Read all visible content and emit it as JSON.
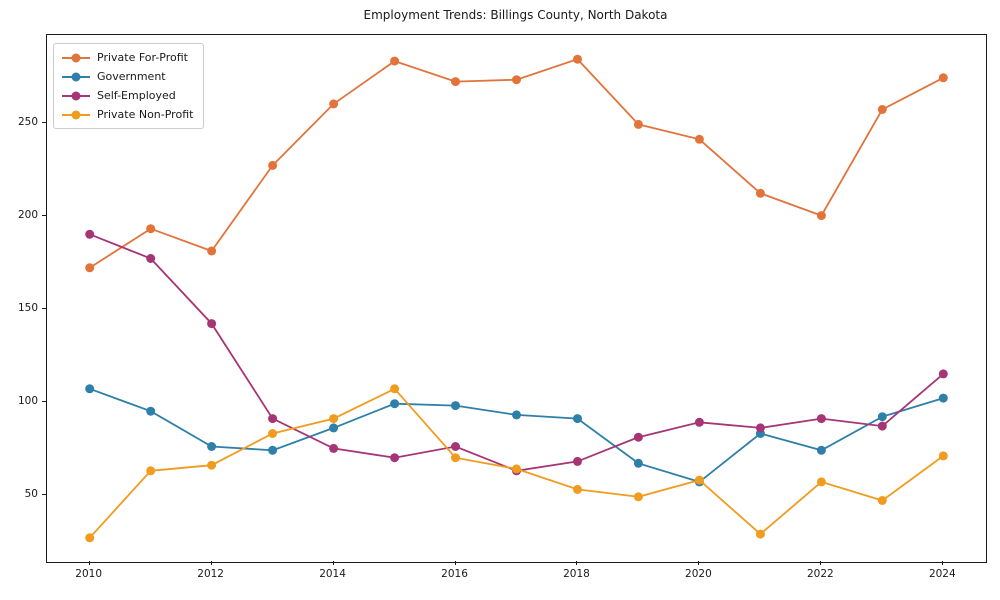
{
  "chart_data": {
    "type": "line",
    "title": "Employment Trends: Billings County, North Dakota",
    "x": [
      2010,
      2011,
      2012,
      2013,
      2014,
      2015,
      2016,
      2017,
      2018,
      2019,
      2020,
      2021,
      2022,
      2023,
      2024
    ],
    "series": [
      {
        "name": "Private For-Profit",
        "color": "#e2743b",
        "values": [
          172,
          193,
          181,
          227,
          260,
          283,
          272,
          273,
          284,
          249,
          241,
          212,
          200,
          257,
          274
        ]
      },
      {
        "name": "Government",
        "color": "#2e7fa9",
        "values": [
          107,
          95,
          76,
          74,
          86,
          99,
          98,
          93,
          91,
          67,
          57,
          83,
          74,
          92,
          102
        ]
      },
      {
        "name": "Self-Employed",
        "color": "#a63576",
        "values": [
          190,
          177,
          142,
          91,
          75,
          70,
          76,
          63,
          68,
          81,
          89,
          86,
          91,
          87,
          115
        ]
      },
      {
        "name": "Private Non-Profit",
        "color": "#f09c1e",
        "values": [
          27,
          63,
          66,
          83,
          91,
          107,
          70,
          64,
          53,
          49,
          58,
          29,
          57,
          47,
          71
        ]
      }
    ],
    "x_ticks": [
      2010,
      2012,
      2014,
      2016,
      2018,
      2020,
      2022,
      2024
    ],
    "y_ticks": [
      50,
      100,
      150,
      200,
      250
    ],
    "xlim": [
      2009.3,
      2024.7
    ],
    "ylim": [
      14,
      297
    ],
    "grid": false,
    "legend_position": "upper-left",
    "axis_color": "#1a1a1a",
    "marker": "circle",
    "line_width": 1.8,
    "marker_radius": 4.5
  }
}
